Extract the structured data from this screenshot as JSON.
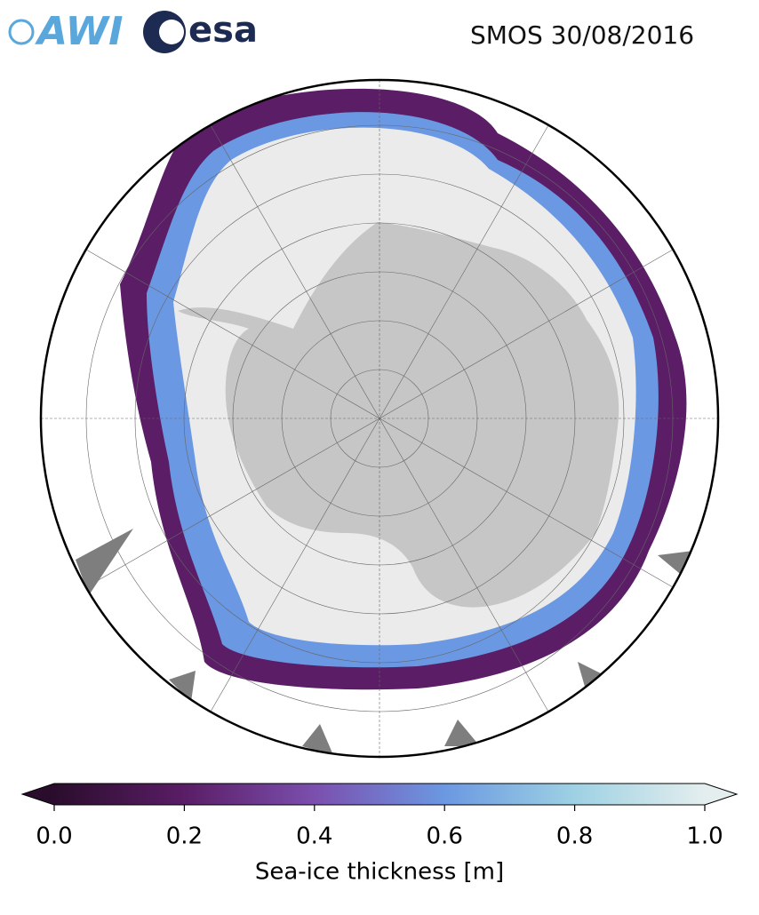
{
  "header": {
    "logos": [
      "AWI",
      "esa"
    ],
    "title": "SMOS 30/08/2016"
  },
  "colorbar": {
    "label": "Sea-ice thickness [m]",
    "lim": [
      0,
      1
    ],
    "ticks": [
      {
        "value": 0,
        "label": "0.0"
      },
      {
        "value": 0.2,
        "label": "0.2"
      },
      {
        "value": 0.4,
        "label": "0.4"
      },
      {
        "value": 0.6,
        "label": "0.6"
      },
      {
        "value": 0.8,
        "label": "0.8"
      },
      {
        "value": 1,
        "label": "1.0"
      }
    ],
    "colors": [
      "#2a0d2c",
      "#5a1d66",
      "#7b4fae",
      "#6b98e2",
      "#9ed1e3",
      "#e4eeee"
    ]
  }
}
